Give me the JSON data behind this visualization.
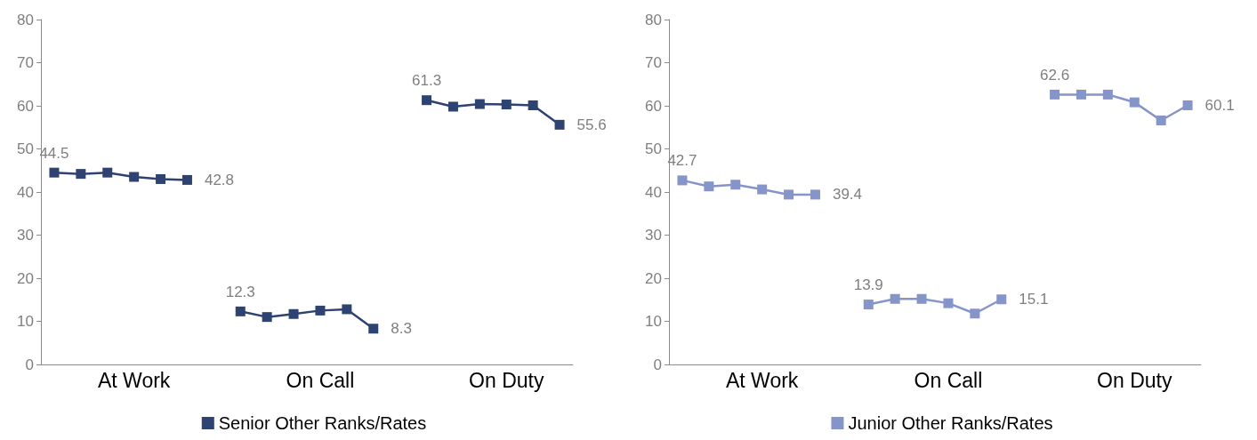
{
  "chart_data": [
    {
      "type": "line",
      "categories": [
        null,
        null,
        null,
        "At Work",
        null,
        null,
        null,
        null,
        null,
        null,
        "On Call",
        null,
        null,
        null,
        null,
        null,
        null,
        "On Duty",
        null,
        null
      ],
      "ylim": [
        0,
        80
      ],
      "yticks": [
        0,
        10,
        20,
        30,
        40,
        50,
        60,
        70,
        80
      ],
      "grid": false,
      "legend": "bottom",
      "marker": "square",
      "line_style": "solid",
      "series": [
        {
          "name": "Senior Other Ranks/Rates",
          "color": "#2e4372",
          "values": [
            44.5,
            44.2,
            44.5,
            43.5,
            43.0,
            42.8,
            null,
            12.3,
            11.0,
            11.7,
            12.5,
            12.8,
            8.3,
            null,
            61.3,
            59.8,
            60.4,
            60.3,
            60.1,
            55.6
          ],
          "value_labels": [
            "44.5",
            null,
            null,
            null,
            null,
            "42.8",
            null,
            "12.3",
            null,
            null,
            null,
            null,
            "8.3",
            null,
            "61.3",
            null,
            null,
            null,
            null,
            "55.6"
          ]
        }
      ]
    },
    {
      "type": "line",
      "categories": [
        null,
        null,
        null,
        "At Work",
        null,
        null,
        null,
        null,
        null,
        null,
        "On Call",
        null,
        null,
        null,
        null,
        null,
        null,
        "On Duty",
        null,
        null
      ],
      "ylim": [
        0,
        80
      ],
      "yticks": [
        0,
        10,
        20,
        30,
        40,
        50,
        60,
        70,
        80
      ],
      "grid": false,
      "legend": "bottom",
      "marker": "square",
      "line_style": "solid",
      "series": [
        {
          "name": "Junior Other Ranks/Rates",
          "color": "#8594c9",
          "values": [
            42.7,
            41.3,
            41.7,
            40.6,
            39.4,
            39.4,
            null,
            13.9,
            15.2,
            15.2,
            14.2,
            11.8,
            15.1,
            null,
            62.6,
            62.6,
            62.6,
            60.8,
            56.6,
            60.1
          ],
          "value_labels": [
            "42.7",
            null,
            null,
            null,
            null,
            "39.4",
            null,
            "13.9",
            null,
            null,
            null,
            null,
            "15.1",
            null,
            "62.6",
            null,
            null,
            null,
            null,
            "60.1"
          ]
        }
      ]
    }
  ]
}
